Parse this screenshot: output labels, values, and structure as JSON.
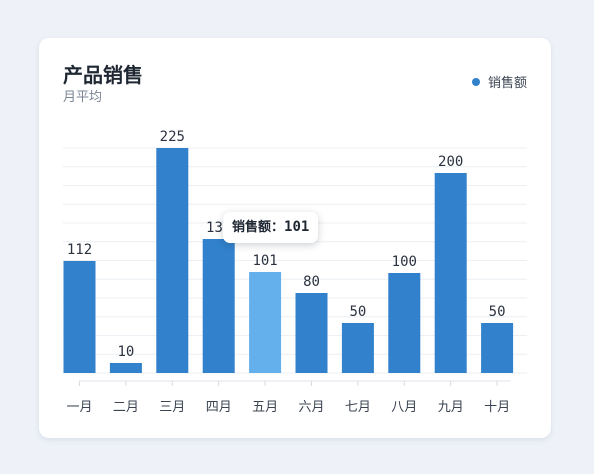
{
  "header": {
    "title": "产品销售",
    "subtitle": "月平均"
  },
  "legend": {
    "label": "销售额",
    "color": "#3181cc"
  },
  "tooltip": {
    "label": "销售额：",
    "value": "101"
  },
  "colors": {
    "bar": "#3181cc",
    "bar_highlight": "#63b0ec"
  },
  "chart_data": {
    "type": "bar",
    "categories": [
      "一月",
      "二月",
      "三月",
      "四月",
      "五月",
      "六月",
      "七月",
      "八月",
      "九月",
      "十月"
    ],
    "series": [
      {
        "name": "销售额",
        "values": [
          112,
          10,
          225,
          134,
          101,
          80,
          50,
          100,
          200,
          50
        ]
      }
    ],
    "data_labels": [
      "112",
      "10",
      "225",
      "134",
      "101",
      "80",
      "50",
      "100",
      "200",
      "50"
    ],
    "highlighted_category": "五月",
    "ylim": [
      0,
      225
    ],
    "grid": true,
    "legend_position": "top-right"
  }
}
